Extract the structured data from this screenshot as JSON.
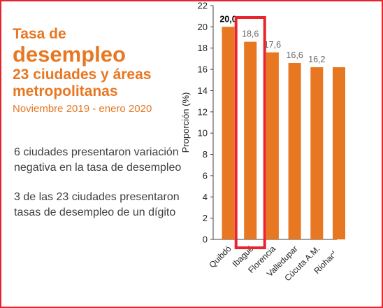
{
  "header": {
    "title_line1": "Tasa de",
    "title_line2": "desempleo",
    "title_line3": "23 ciudades y áreas metropolitanas",
    "period": "Noviembre 2019 - enero 2020"
  },
  "notes": [
    "6 ciudades presentaron variación negativa en la tasa de desempleo",
    "3 de las 23 ciudades presentaron tasas de desempleo de un dígito"
  ],
  "colors": {
    "bar": "#e87722",
    "highlight": "#e8242c",
    "axis": "#404040",
    "label": "#666666"
  },
  "chart_data": {
    "type": "bar",
    "title": "",
    "xlabel": "",
    "ylabel": "Proporción (%)",
    "ylim": [
      0,
      22
    ],
    "yticks": [
      "0",
      "2",
      "4",
      "6",
      "8",
      "10",
      "12",
      "14",
      "16",
      "18",
      "20",
      "22"
    ],
    "categories": [
      "Quibdó",
      "Ibagué",
      "Florencia",
      "Valledupar",
      "Cúcuta A.M.",
      "Riohacha"
    ],
    "values": [
      20.0,
      18.6,
      17.6,
      16.6,
      16.2,
      16.2
    ],
    "value_labels": [
      "20,0",
      "18,6",
      "17,6",
      "16,6",
      "16,2",
      ""
    ],
    "highlighted_category": "Ibagué",
    "grid": false
  }
}
